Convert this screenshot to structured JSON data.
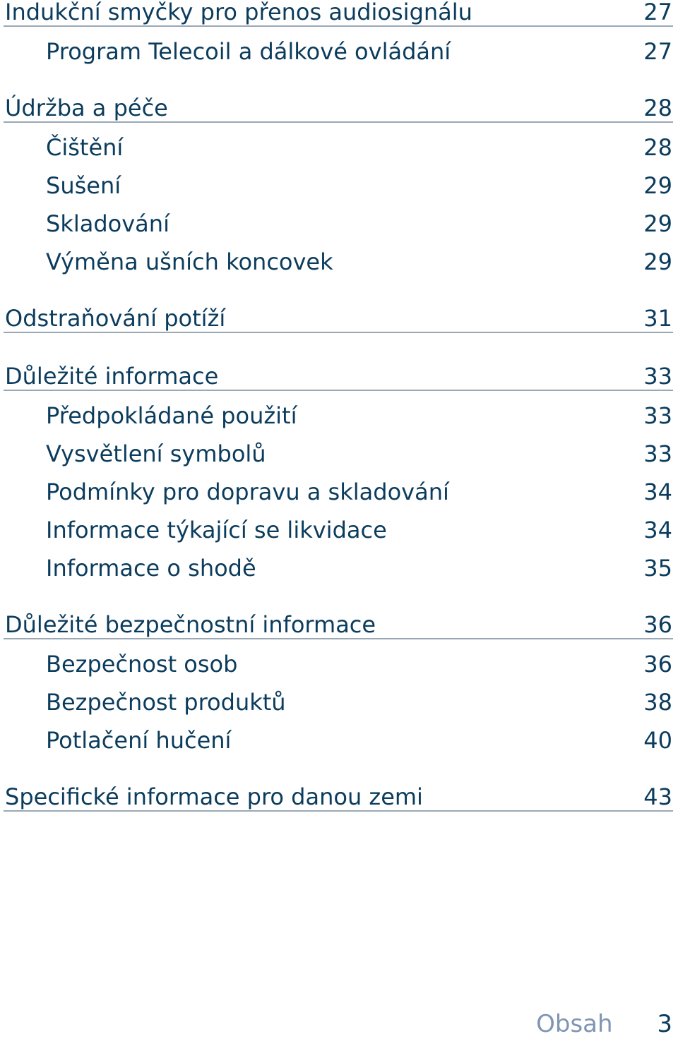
{
  "sections": [
    {
      "title": "Indukční smyčky pro přenos audiosignálu",
      "page": "27",
      "items": [
        {
          "label": "Program Telecoil a dálkové ovládání",
          "page": "27"
        }
      ]
    },
    {
      "title": "Údržba a péče",
      "page": "28",
      "items": [
        {
          "label": "Čištění",
          "page": "28"
        },
        {
          "label": "Sušení",
          "page": "29"
        },
        {
          "label": "Skladování",
          "page": "29"
        },
        {
          "label": "Výměna ušních koncovek",
          "page": "29"
        }
      ]
    },
    {
      "title": "Odstraňování potíží",
      "page": "31",
      "items": []
    },
    {
      "title": "Důležité informace",
      "page": "33",
      "items": [
        {
          "label": "Předpokládané použití",
          "page": "33"
        },
        {
          "label": "Vysvětlení symbolů",
          "page": "33"
        },
        {
          "label": "Podmínky pro dopravu a skladování",
          "page": "34"
        },
        {
          "label": "Informace týkající se likvidace",
          "page": "34"
        },
        {
          "label": "Informace o shodě",
          "page": "35"
        }
      ]
    },
    {
      "title": "Důležité bezpečnostní informace",
      "page": "36",
      "items": [
        {
          "label": "Bezpečnost osob",
          "page": "36"
        },
        {
          "label": "Bezpečnost produktů",
          "page": "38"
        },
        {
          "label": "Potlačení hučení",
          "page": "40"
        }
      ]
    },
    {
      "title": "Specifické informace pro danou zemi",
      "page": "43",
      "items": []
    }
  ],
  "footer": {
    "section_name": "Obsah",
    "page_number": "3"
  }
}
